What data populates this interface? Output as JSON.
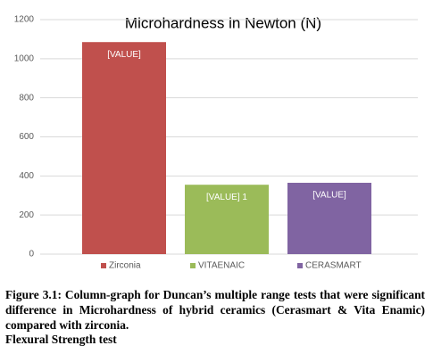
{
  "chart_data": {
    "type": "bar",
    "title": "Microhardness in Newton (N)",
    "categories": [
      "Zirconia",
      "VITAENAIC",
      "CERASMART"
    ],
    "values": [
      1085,
      355,
      365
    ],
    "value_labels": [
      "[VALUE]",
      "[VALUE] 1",
      "[VALUE]"
    ],
    "colors": [
      "#c0504d",
      "#9bbb59",
      "#8064a2"
    ],
    "ylim": [
      0,
      1200
    ],
    "yticks": [
      0,
      200,
      400,
      600,
      800,
      1000,
      1200
    ],
    "grid": true,
    "legend": "bottom"
  },
  "caption": "Figure 3.1: Column-graph for Duncan’s multiple range tests that were significant difference in Microhardness of hybrid ceramics (Cerasmart & Vita Enamic) compared with zirconia.",
  "next_heading": "Flexural Strength test"
}
